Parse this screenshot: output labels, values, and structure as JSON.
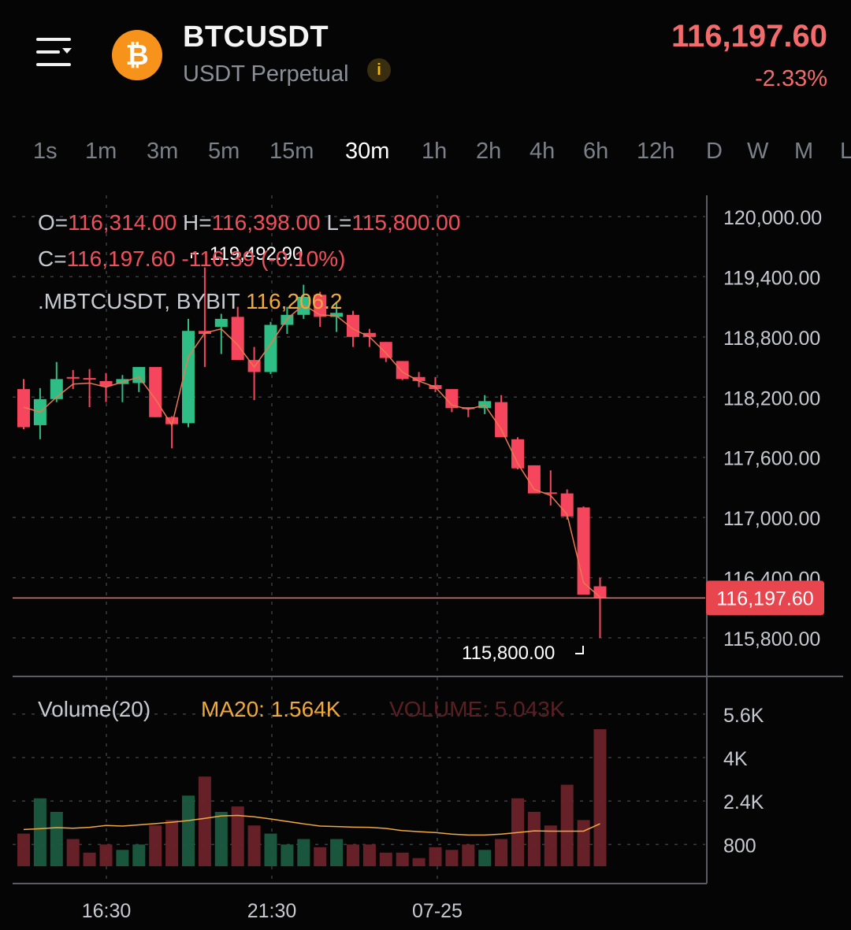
{
  "header": {
    "symbol": "BTCUSDT",
    "subtitle": "USDT Perpetual",
    "price": "116,197.60",
    "change": "-2.33%",
    "coin_icon": "bitcoin-icon",
    "info_icon": "info-icon",
    "menu_icon": "menu-icon"
  },
  "timeframes": [
    "1s",
    "1m",
    "3m",
    "5m",
    "15m",
    "30m",
    "1h",
    "2h",
    "4h",
    "6h",
    "12h",
    "D",
    "W",
    "M",
    "L"
  ],
  "active_timeframe": "30m",
  "ohlc": {
    "o_label": "O=",
    "o": "116,314.00",
    "h_label": "H=",
    "h": "116,398.00",
    "l_label": "L=",
    "l": "115,800.00",
    "c_label": "C=",
    "c": "116,197.60",
    "chg": "-116.39 (-0.10%)"
  },
  "indicator": {
    "name": ".MBTCUSDT, BYBIT",
    "value": "116,206.2"
  },
  "marks": {
    "high": "119,492.90",
    "low": "115,800.00"
  },
  "price_label": "116,197.60",
  "volume_panel": {
    "title": "Volume(20)",
    "ma_label": "MA20: 1.564K",
    "vol_label": "VOLUME: 5.043K"
  },
  "colors": {
    "up": "#2ebd85",
    "down": "#f6465d",
    "ma": "#f0a93b",
    "bg": "#050505"
  },
  "chart_data": {
    "type": "candlestick",
    "price_axis": [
      "120,000.00",
      "119,400.00",
      "118,800.00",
      "118,200.00",
      "117,600.00",
      "117,000.00",
      "116,400.00",
      "115,800.00"
    ],
    "price_ticks": [
      120000,
      119400,
      118800,
      118200,
      117600,
      117000,
      116400,
      115800
    ],
    "volume_axis": [
      "5.6K",
      "4K",
      "2.4K",
      "800"
    ],
    "volume_ticks": [
      5600,
      4000,
      2400,
      800
    ],
    "time_axis": [
      "16:30",
      "21:30",
      "07-25"
    ],
    "time_axis_index": [
      6,
      16,
      26
    ],
    "candles": [
      {
        "o": 118280,
        "h": 118380,
        "l": 117880,
        "c": 117900,
        "v": 1200
      },
      {
        "o": 117920,
        "h": 118290,
        "l": 117780,
        "c": 118180,
        "v": 2500
      },
      {
        "o": 118180,
        "h": 118550,
        "l": 118150,
        "c": 118380,
        "v": 2000
      },
      {
        "o": 118400,
        "h": 118470,
        "l": 118280,
        "c": 118390,
        "v": 1000
      },
      {
        "o": 118390,
        "h": 118480,
        "l": 118100,
        "c": 118380,
        "v": 500
      },
      {
        "o": 118360,
        "h": 118440,
        "l": 118150,
        "c": 118310,
        "v": 800
      },
      {
        "o": 118330,
        "h": 118420,
        "l": 118150,
        "c": 118380,
        "v": 600
      },
      {
        "o": 118340,
        "h": 118490,
        "l": 118250,
        "c": 118500,
        "v": 800
      },
      {
        "o": 118500,
        "h": 118490,
        "l": 118000,
        "c": 118000,
        "v": 1500
      },
      {
        "o": 118000,
        "h": 118010,
        "l": 117690,
        "c": 117930,
        "v": 1700
      },
      {
        "o": 117940,
        "h": 118980,
        "l": 117900,
        "c": 118860,
        "v": 2600
      },
      {
        "o": 118860,
        "h": 119492.9,
        "l": 118500,
        "c": 118830,
        "v": 3300
      },
      {
        "o": 118900,
        "h": 119030,
        "l": 118630,
        "c": 118980,
        "v": 2000
      },
      {
        "o": 119000,
        "h": 119100,
        "l": 118570,
        "c": 118570,
        "v": 2200
      },
      {
        "o": 118570,
        "h": 118700,
        "l": 118170,
        "c": 118450,
        "v": 1500
      },
      {
        "o": 118450,
        "h": 118950,
        "l": 118430,
        "c": 118920,
        "v": 1200
      },
      {
        "o": 118920,
        "h": 119100,
        "l": 118830,
        "c": 119020,
        "v": 800
      },
      {
        "o": 119020,
        "h": 119320,
        "l": 118980,
        "c": 119200,
        "v": 1000
      },
      {
        "o": 119220,
        "h": 119250,
        "l": 118900,
        "c": 119000,
        "v": 700
      },
      {
        "o": 119000,
        "h": 119150,
        "l": 118850,
        "c": 119040,
        "v": 1000
      },
      {
        "o": 119020,
        "h": 119060,
        "l": 118700,
        "c": 118800,
        "v": 800
      },
      {
        "o": 118840,
        "h": 118880,
        "l": 118700,
        "c": 118800,
        "v": 800
      },
      {
        "o": 118750,
        "h": 118750,
        "l": 118550,
        "c": 118590,
        "v": 500
      },
      {
        "o": 118560,
        "h": 118560,
        "l": 118370,
        "c": 118380,
        "v": 500
      },
      {
        "o": 118400,
        "h": 118450,
        "l": 118300,
        "c": 118360,
        "v": 300
      },
      {
        "o": 118320,
        "h": 118400,
        "l": 118250,
        "c": 118280,
        "v": 700
      },
      {
        "o": 118280,
        "h": 118280,
        "l": 118050,
        "c": 118090,
        "v": 600
      },
      {
        "o": 118100,
        "h": 118100,
        "l": 118000,
        "c": 118080,
        "v": 800
      },
      {
        "o": 118090,
        "h": 118220,
        "l": 118030,
        "c": 118160,
        "v": 600
      },
      {
        "o": 118150,
        "h": 118220,
        "l": 117810,
        "c": 117800,
        "v": 1000
      },
      {
        "o": 117780,
        "h": 117800,
        "l": 117480,
        "c": 117490,
        "v": 2500
      },
      {
        "o": 117520,
        "h": 117520,
        "l": 117240,
        "c": 117240,
        "v": 2000
      },
      {
        "o": 117250,
        "h": 117470,
        "l": 117120,
        "c": 117240,
        "v": 1500
      },
      {
        "o": 117240,
        "h": 117280,
        "l": 116980,
        "c": 117010,
        "v": 3000
      },
      {
        "o": 117100,
        "h": 117110,
        "l": 116230,
        "c": 116230,
        "v": 1700
      },
      {
        "o": 116314,
        "h": 116398,
        "l": 115800,
        "c": 116197.6,
        "v": 5043
      }
    ],
    "ma_indicator": [
      118100,
      118050,
      118200,
      118330,
      118340,
      118300,
      118350,
      118400,
      118180,
      117920,
      118600,
      118840,
      118880,
      118720,
      118500,
      118730,
      118980,
      119120,
      119020,
      119010,
      118880,
      118800,
      118640,
      118450,
      118360,
      118300,
      118120,
      118080,
      118120,
      117880,
      117540,
      117280,
      117220,
      117030,
      116350,
      116206.2
    ],
    "volume_ma20": [
      1350,
      1380,
      1420,
      1400,
      1430,
      1500,
      1480,
      1520,
      1570,
      1620,
      1680,
      1760,
      1850,
      1870,
      1820,
      1740,
      1650,
      1560,
      1480,
      1460,
      1440,
      1430,
      1390,
      1310,
      1270,
      1240,
      1180,
      1150,
      1150,
      1180,
      1240,
      1300,
      1290,
      1290,
      1290,
      1564
    ]
  }
}
